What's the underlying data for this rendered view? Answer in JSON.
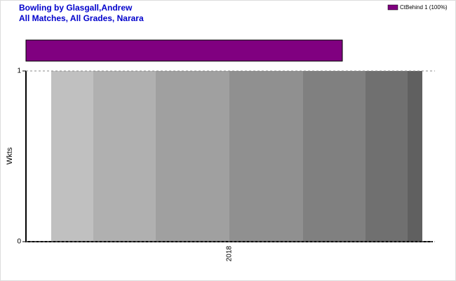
{
  "chart_data": {
    "type": "bar",
    "title": "Bowling by Glasgall,Andrew",
    "subtitle": "All Matches, All Grades, Narara",
    "y_label": "Wkts",
    "categories": [
      "2018"
    ],
    "ylim": [
      0,
      1
    ],
    "yticks": [
      0,
      1
    ],
    "grid": true,
    "dismissals": [
      {
        "name": "CtBehind 1 (100%)",
        "color": "#800080",
        "value": 100
      }
    ]
  }
}
